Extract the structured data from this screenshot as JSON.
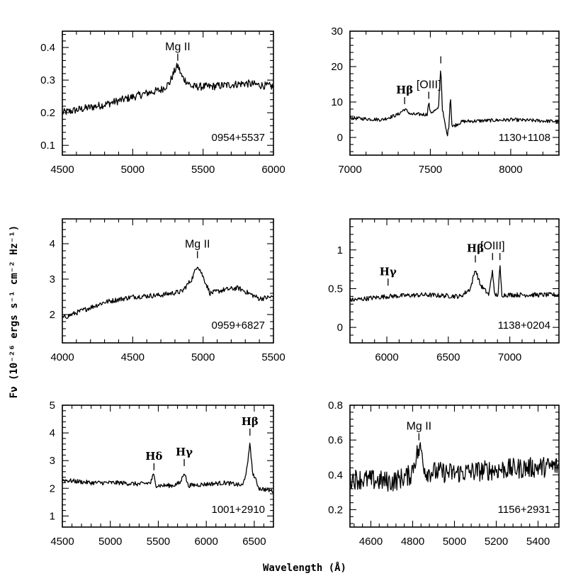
{
  "figure": {
    "xlabel": "Wavelength (Å)",
    "ylabel": "Fν (10⁻²⁶ ergs s⁻¹ cm⁻² Hz⁻¹)"
  },
  "chart_data": [
    {
      "type": "line",
      "object": "0954+5537",
      "xlim": [
        4500,
        6000
      ],
      "ylim": [
        0.07,
        0.45
      ],
      "xticks": [
        4500,
        5000,
        5500,
        6000
      ],
      "yticks": [
        0.1,
        0.2,
        0.3,
        0.4
      ],
      "ytick_labels": [
        "0.1",
        "0.2",
        "0.3",
        "0.4"
      ],
      "continuum": [
        [
          4500,
          0.2
        ],
        [
          4800,
          0.225
        ],
        [
          5100,
          0.26
        ],
        [
          5200,
          0.27
        ],
        [
          5260,
          0.29
        ],
        [
          5300,
          0.33
        ],
        [
          5320,
          0.345
        ],
        [
          5350,
          0.31
        ],
        [
          5420,
          0.28
        ],
        [
          5550,
          0.28
        ],
        [
          5800,
          0.29
        ],
        [
          6000,
          0.28
        ]
      ],
      "noise": 0.012,
      "lines": [
        {
          "label": "Mg II",
          "x": 5320,
          "y": 0.355,
          "style": "plain"
        }
      ]
    },
    {
      "type": "line",
      "object": "1130+1108",
      "xlim": [
        7000,
        8300
      ],
      "ylim": [
        -5,
        30
      ],
      "xticks": [
        7000,
        7500,
        8000
      ],
      "yticks": [
        0,
        10,
        20,
        30
      ],
      "ytick_labels": [
        "0",
        "10",
        "20",
        "30"
      ],
      "continuum": [
        [
          7000,
          5.5
        ],
        [
          7200,
          5.0
        ],
        [
          7300,
          6.5
        ],
        [
          7340,
          8.0
        ],
        [
          7380,
          6.5
        ],
        [
          7480,
          6.5
        ],
        [
          7490,
          10.0
        ],
        [
          7500,
          7.0
        ],
        [
          7550,
          8.0
        ],
        [
          7565,
          20.0
        ],
        [
          7575,
          8.0
        ],
        [
          7590,
          4.0
        ],
        [
          7605,
          0.5
        ],
        [
          7615,
          3.0
        ],
        [
          7625,
          12.0
        ],
        [
          7635,
          3.0
        ],
        [
          7700,
          4.5
        ],
        [
          8000,
          5.0
        ],
        [
          8300,
          4.5
        ]
      ],
      "noise": 0.5,
      "lines": [
        {
          "label": "Hβ",
          "x": 7340,
          "y": 9.0,
          "style": "serif"
        },
        {
          "label": "[OIII]",
          "x": 7490,
          "y": 10.5,
          "style": "plain"
        },
        {
          "label": "",
          "x": 7565,
          "y": 20.5,
          "style": "plain"
        }
      ]
    },
    {
      "type": "line",
      "object": "0959+6827",
      "xlim": [
        4000,
        5500
      ],
      "ylim": [
        1.2,
        4.7
      ],
      "xticks": [
        4000,
        4500,
        5000,
        5500
      ],
      "yticks": [
        2,
        3,
        4
      ],
      "ytick_labels": [
        "2",
        "3",
        "4"
      ],
      "continuum": [
        [
          4000,
          1.9
        ],
        [
          4300,
          2.35
        ],
        [
          4500,
          2.5
        ],
        [
          4700,
          2.55
        ],
        [
          4850,
          2.65
        ],
        [
          4920,
          3.0
        ],
        [
          4960,
          3.4
        ],
        [
          4980,
          3.25
        ],
        [
          5050,
          2.6
        ],
        [
          5150,
          2.7
        ],
        [
          5250,
          2.75
        ],
        [
          5400,
          2.45
        ],
        [
          5500,
          2.5
        ]
      ],
      "noise": 0.07,
      "lines": [
        {
          "label": "Mg II",
          "x": 4960,
          "y": 3.55,
          "style": "plain"
        }
      ]
    },
    {
      "type": "line",
      "object": "1138+0204",
      "xlim": [
        5700,
        7400
      ],
      "ylim": [
        -0.2,
        1.4
      ],
      "xticks": [
        6000,
        6500,
        7000
      ],
      "yticks": [
        0,
        0.5,
        1
      ],
      "ytick_labels": [
        "0",
        "0.5",
        "1"
      ],
      "continuum": [
        [
          5700,
          0.35
        ],
        [
          6000,
          0.4
        ],
        [
          6300,
          0.42
        ],
        [
          6600,
          0.4
        ],
        [
          6680,
          0.5
        ],
        [
          6720,
          0.75
        ],
        [
          6760,
          0.55
        ],
        [
          6830,
          0.42
        ],
        [
          6860,
          0.75
        ],
        [
          6875,
          0.42
        ],
        [
          6905,
          0.42
        ],
        [
          6920,
          0.8
        ],
        [
          6935,
          0.42
        ],
        [
          7200,
          0.42
        ],
        [
          7400,
          0.42
        ]
      ],
      "noise": 0.03,
      "lines": [
        {
          "label": "Hγ",
          "x": 6010,
          "y": 0.52,
          "style": "serif"
        },
        {
          "label": "Hβ",
          "x": 6720,
          "y": 0.82,
          "style": "serif"
        },
        {
          "label": "[OIII]",
          "x": 6860,
          "y": 0.85,
          "style": "plain"
        },
        {
          "label": "",
          "x": 6920,
          "y": 0.85,
          "style": "plain"
        }
      ]
    },
    {
      "type": "line",
      "object": "1001+2910",
      "xlim": [
        4500,
        6700
      ],
      "ylim": [
        0.6,
        5
      ],
      "xticks": [
        4500,
        5000,
        5500,
        6000,
        6500
      ],
      "yticks": [
        1,
        2,
        3,
        4,
        5
      ],
      "ytick_labels": [
        "1",
        "2",
        "3",
        "4",
        "5"
      ],
      "continuum": [
        [
          4500,
          2.3
        ],
        [
          4800,
          2.2
        ],
        [
          5100,
          2.2
        ],
        [
          5300,
          2.15
        ],
        [
          5420,
          2.2
        ],
        [
          5450,
          2.5
        ],
        [
          5480,
          2.1
        ],
        [
          5650,
          2.1
        ],
        [
          5730,
          2.2
        ],
        [
          5770,
          2.6
        ],
        [
          5810,
          2.1
        ],
        [
          6000,
          2.15
        ],
        [
          6200,
          2.2
        ],
        [
          6380,
          2.1
        ],
        [
          6430,
          2.8
        ],
        [
          6455,
          3.7
        ],
        [
          6480,
          2.6
        ],
        [
          6550,
          2.0
        ],
        [
          6700,
          1.9
        ]
      ],
      "noise": 0.08,
      "lines": [
        {
          "label": "Hδ",
          "x": 5455,
          "y": 2.6,
          "style": "serif"
        },
        {
          "label": "Hγ",
          "x": 5770,
          "y": 2.75,
          "style": "serif"
        },
        {
          "label": "Hβ",
          "x": 6455,
          "y": 3.85,
          "style": "serif"
        }
      ]
    },
    {
      "type": "line",
      "object": "1156+2931",
      "xlim": [
        4500,
        5500
      ],
      "ylim": [
        0.1,
        0.8
      ],
      "xticks": [
        4600,
        4800,
        5000,
        5200,
        5400
      ],
      "yticks": [
        0.2,
        0.4,
        0.6,
        0.8
      ],
      "ytick_labels": [
        "0.2",
        "0.4",
        "0.6",
        "0.8"
      ],
      "continuum": [
        [
          4500,
          0.38
        ],
        [
          4700,
          0.36
        ],
        [
          4790,
          0.4
        ],
        [
          4820,
          0.52
        ],
        [
          4840,
          0.55
        ],
        [
          4860,
          0.42
        ],
        [
          5000,
          0.41
        ],
        [
          5200,
          0.43
        ],
        [
          5500,
          0.45
        ]
      ],
      "noise": 0.06,
      "lines": [
        {
          "label": "Mg II",
          "x": 4830,
          "y": 0.59,
          "style": "plain"
        }
      ]
    }
  ]
}
